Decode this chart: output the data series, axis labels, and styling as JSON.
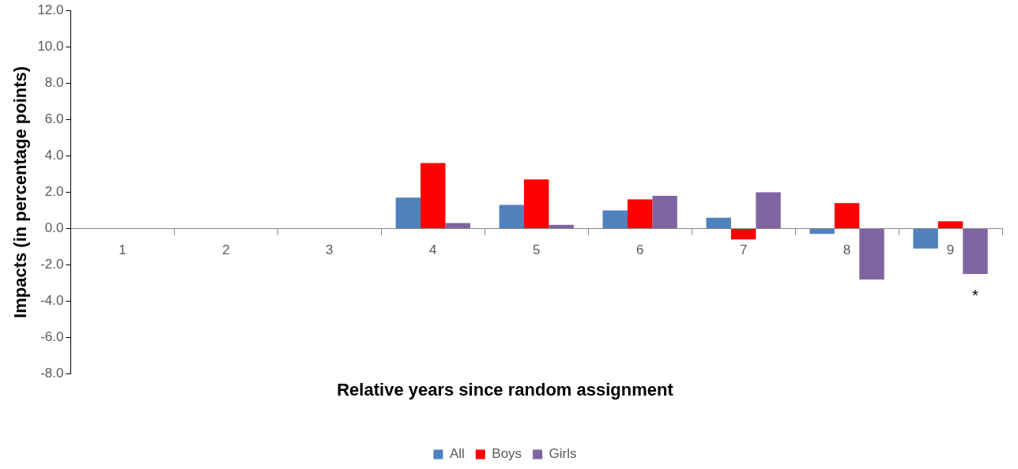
{
  "chart_data": {
    "type": "bar",
    "xlabel": "Relative years since random assignment",
    "ylabel": "Impacts (in percentage points)",
    "categories": [
      "1",
      "2",
      "3",
      "4",
      "5",
      "6",
      "7",
      "8",
      "9"
    ],
    "series": [
      {
        "name": "All",
        "color": "#4f81bd",
        "values": [
          null,
          null,
          null,
          1.7,
          1.3,
          1.0,
          0.6,
          -0.3,
          -1.1
        ]
      },
      {
        "name": "Boys",
        "color": "#ff0000",
        "values": [
          null,
          null,
          null,
          3.6,
          2.7,
          1.6,
          -0.6,
          1.4,
          0.4
        ]
      },
      {
        "name": "Girls",
        "color": "#8064a2",
        "values": [
          null,
          null,
          null,
          0.3,
          0.2,
          1.8,
          2.0,
          -2.8,
          -2.5
        ]
      }
    ],
    "ylim": [
      -8,
      12
    ],
    "yticks": [
      {
        "value": -8,
        "label": "-8.0"
      },
      {
        "value": -6,
        "label": "-6.0"
      },
      {
        "value": -4,
        "label": "-4.0"
      },
      {
        "value": -2,
        "label": "-2.0"
      },
      {
        "value": 0,
        "label": "0.0"
      },
      {
        "value": 2,
        "label": "2.0"
      },
      {
        "value": 4,
        "label": "4.0"
      },
      {
        "value": 6,
        "label": "6.0"
      },
      {
        "value": 8,
        "label": "8.0"
      },
      {
        "value": 10,
        "label": "10.0"
      },
      {
        "value": 12,
        "label": "12.0"
      }
    ],
    "annotations": [
      "*"
    ],
    "grid": false,
    "legend": "bottom"
  }
}
